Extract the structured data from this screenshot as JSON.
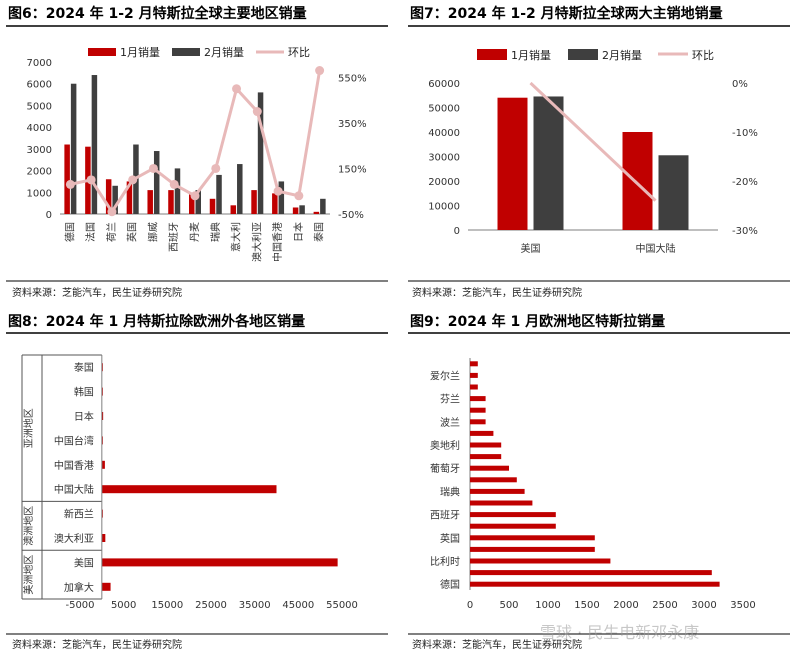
{
  "colors": {
    "primary": "#c00000",
    "secondary": "#3f3f3f",
    "line": "#e8b9b9",
    "axis": "#7f7f7f"
  },
  "source_note": "资料来源：芝能汽车，民生证券研究院",
  "watermark": "雪球 · 民生电新邓永康",
  "chart_data": [
    {
      "id": "fig6",
      "type": "bar",
      "title": "图6：2024 年 1-2 月特斯拉全球主要地区销量",
      "legend": [
        "1月销量",
        "2月销量",
        "环比"
      ],
      "categories": [
        "德国",
        "法国",
        "荷兰",
        "英国",
        "挪威",
        "西班牙",
        "丹麦",
        "瑞典",
        "意大利",
        "澳大利亚",
        "中国香港",
        "日本",
        "泰国"
      ],
      "series": [
        {
          "name": "1月销量",
          "values": [
            3200,
            3100,
            1600,
            1500,
            1100,
            1100,
            900,
            700,
            400,
            1100,
            950,
            300,
            100
          ]
        },
        {
          "name": "2月销量",
          "values": [
            6000,
            6400,
            1300,
            3200,
            2900,
            2100,
            1100,
            1800,
            2300,
            5600,
            1500,
            400,
            700
          ]
        },
        {
          "name": "环比",
          "axis": "right",
          "values": [
            80,
            100,
            -40,
            100,
            150,
            80,
            30,
            150,
            500,
            400,
            50,
            30,
            580
          ]
        }
      ],
      "y_left": {
        "min": 0,
        "max": 7000,
        "ticks": [
          0,
          1000,
          2000,
          3000,
          4000,
          5000,
          6000,
          7000
        ]
      },
      "y_right": {
        "min": -50,
        "max": 600,
        "ticks": [
          "-50%",
          "150%",
          "350%",
          "550%"
        ],
        "tick_values": [
          -50,
          150,
          350,
          550
        ]
      }
    },
    {
      "id": "fig7",
      "type": "bar",
      "title": "图7：2024 年 1-2 月特斯拉全球两大主销地销量",
      "legend": [
        "1月销量",
        "2月销量",
        "环比"
      ],
      "categories": [
        "美国",
        "中国大陆"
      ],
      "series": [
        {
          "name": "1月销量",
          "values": [
            54000,
            40000
          ]
        },
        {
          "name": "2月销量",
          "values": [
            54500,
            30500
          ]
        },
        {
          "name": "环比",
          "axis": "right",
          "values": [
            0,
            -24
          ]
        }
      ],
      "y_left": {
        "min": 0,
        "max": 60000,
        "ticks": [
          0,
          10000,
          20000,
          30000,
          40000,
          50000,
          60000
        ]
      },
      "y_right": {
        "min": -30,
        "max": 0,
        "ticks": [
          "0%",
          "-10%",
          "-20%",
          "-30%"
        ],
        "tick_values": [
          0,
          -10,
          -20,
          -30
        ]
      }
    },
    {
      "id": "fig8",
      "type": "bar",
      "orientation": "horizontal",
      "title": "图8：2024 年 1 月特斯拉除欧洲外各地区销量",
      "groups": [
        {
          "label": "亚洲地区",
          "categories": [
            "泰国",
            "韩国",
            "日本",
            "中国台湾",
            "中国香港",
            "中国大陆"
          ],
          "values": [
            50,
            50,
            300,
            50,
            700,
            40000
          ]
        },
        {
          "label": "澳洲地区",
          "categories": [
            "新西兰",
            "澳大利亚"
          ],
          "values": [
            50,
            800
          ]
        },
        {
          "label": "美洲地区",
          "categories": [
            "美国",
            "加拿大"
          ],
          "values": [
            54000,
            2000
          ]
        }
      ],
      "x_axis": {
        "min": -5000,
        "max": 55000,
        "ticks": [
          -5000,
          5000,
          15000,
          25000,
          35000,
          45000,
          55000
        ]
      }
    },
    {
      "id": "fig9",
      "type": "bar",
      "orientation": "horizontal",
      "title": "图9：2024 年 1 月欧洲地区特斯拉销量",
      "categories": [
        "德国",
        "",
        "比利时",
        "",
        "英国",
        "",
        "西班牙",
        "",
        "瑞典",
        "",
        "葡萄牙",
        "",
        "奥地利",
        "",
        "波兰",
        "",
        "芬兰",
        "",
        "爱尔兰",
        ""
      ],
      "values": [
        3200,
        3100,
        1800,
        1600,
        1600,
        1100,
        1100,
        800,
        700,
        600,
        500,
        400,
        400,
        300,
        200,
        200,
        200,
        100,
        100,
        100
      ],
      "x_axis": {
        "min": 0,
        "max": 3500,
        "ticks": [
          0,
          500,
          1000,
          1500,
          2000,
          2500,
          3000,
          3500
        ]
      }
    }
  ]
}
